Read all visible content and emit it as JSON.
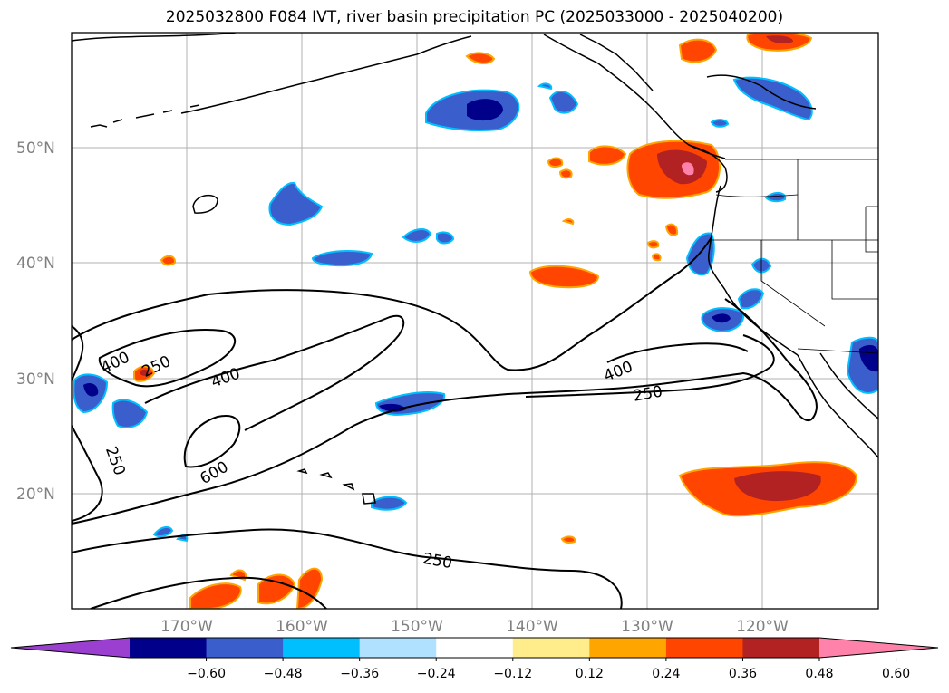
{
  "title": "2025032800 F084 IVT, river basin precipitation PC (2025033000 - 2025040200)",
  "lat_labels": [
    "50°N",
    "40°N",
    "30°N",
    "20°N"
  ],
  "lon_labels": [
    "170°W",
    "160°W",
    "150°W",
    "140°W",
    "130°W",
    "120°W"
  ],
  "colorbar": {
    "colors": [
      "#9a3fd0",
      "#00008b",
      "#3a5fcd",
      "#00bfff",
      "#b0e2ff",
      "#ffffff",
      "#ffec8b",
      "#ffa500",
      "#ff4500",
      "#b22222",
      "#ff82ab"
    ],
    "labels": [
      "−0.60",
      "−0.48",
      "−0.36",
      "−0.24",
      "−0.12",
      "0.12",
      "0.24",
      "0.36",
      "0.48",
      "0.60"
    ]
  },
  "contour_labels": {
    "c400_west": "400",
    "c250_west": "250",
    "c400_mid": "400",
    "c600": "600",
    "c250_sw": "250",
    "c400_east": "400",
    "c250_east": "250",
    "c250_south": "250"
  },
  "colors": {
    "grid": "#b0b0b0",
    "coast": "#000000",
    "contour": "#000000"
  }
}
